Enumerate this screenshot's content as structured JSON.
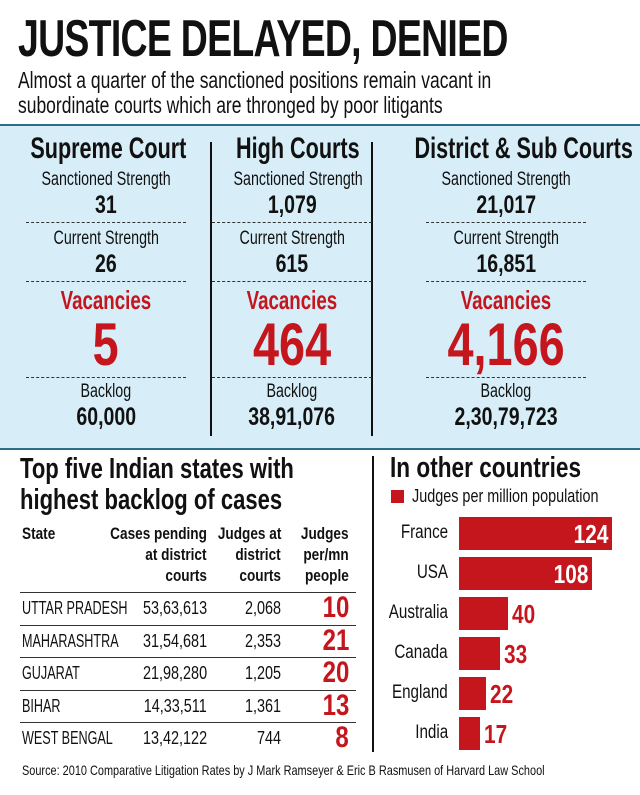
{
  "header": {
    "title": "JUSTICE DELAYED, DENIED",
    "subtitle_line1": "Almost a quarter of the sanctioned positions remain vacant in",
    "subtitle_line2": "subordinate courts which are thronged by poor litigants"
  },
  "courts": [
    {
      "name": "Supreme Court",
      "sanctioned_label": "Sanctioned Strength",
      "sanctioned": "31",
      "current_label": "Current Strength",
      "current": "26",
      "vacancies_label": "Vacancies",
      "vacancies": "5",
      "backlog_label": "Backlog",
      "backlog": "60,000"
    },
    {
      "name": "High Courts",
      "sanctioned_label": "Sanctioned Strength",
      "sanctioned": "1,079",
      "current_label": "Current Strength",
      "current": "615",
      "vacancies_label": "Vacancies",
      "vacancies": "464",
      "backlog_label": "Backlog",
      "backlog": "38,91,076"
    },
    {
      "name": "District & Sub Courts",
      "sanctioned_label": "Sanctioned Strength",
      "sanctioned": "21,017",
      "current_label": "Current Strength",
      "current": "16,851",
      "vacancies_label": "Vacancies",
      "vacancies": "4,166",
      "backlog_label": "Backlog",
      "backlog": "2,30,79,723"
    }
  ],
  "states_table": {
    "title_line1": "Top five Indian states with",
    "title_line2": "highest  backlog of cases",
    "headers": [
      [
        "State"
      ],
      [
        "Cases pending",
        "at district",
        "courts"
      ],
      [
        "Judges at",
        "district",
        "courts"
      ],
      [
        "Judges",
        "per/mn",
        "people"
      ]
    ],
    "rows": [
      [
        "UTTAR PRADESH",
        "53,63,613",
        "2,068",
        "10"
      ],
      [
        "MAHARASHTRA",
        "31,54,681",
        "2,353",
        "21"
      ],
      [
        "GUJARAT",
        "21,98,280",
        "1,205",
        "20"
      ],
      [
        "BIHAR",
        "14,33,511",
        "1,361",
        "13"
      ],
      [
        "WEST BENGAL",
        "13,42,122",
        "744",
        "8"
      ]
    ]
  },
  "chart_data": {
    "type": "bar",
    "orientation": "horizontal",
    "title": "In other countries",
    "legend": "top-left",
    "series": [
      {
        "name": "Judges per million population",
        "values": [
          124,
          108,
          40,
          33,
          22,
          17
        ],
        "color": "#c4161c"
      }
    ],
    "categories": [
      "France",
      "USA",
      "Australia",
      "Canada",
      "England",
      "India"
    ],
    "grid": false
  },
  "source": "Source: 2010 Comparative Litigation Rates by J Mark Ramseyer & Eric B Rasmusen of Harvard Law School",
  "colors": {
    "accent_red": "#c4161c",
    "panel_blue": "#d7eef8",
    "panel_border": "#2d6f87"
  }
}
